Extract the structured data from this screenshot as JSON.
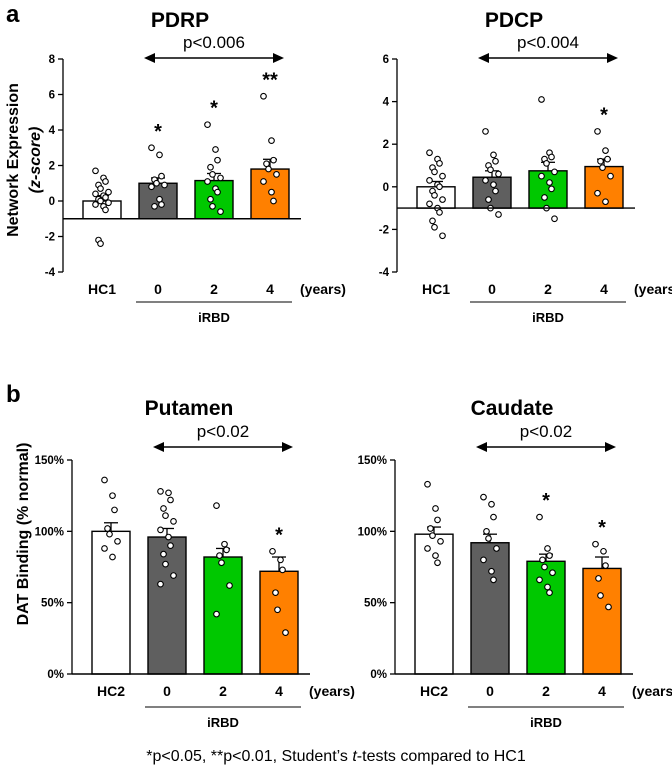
{
  "panel_labels": {
    "a": "a",
    "b": "b"
  },
  "colors": {
    "hc": "#ffffff",
    "year0": "#5f5f5f",
    "year2": "#00c800",
    "year4": "#ff8000",
    "axis": "#000000"
  },
  "shared": {
    "row_a_ylabel_main": "Network Expression",
    "row_a_ylabel_sub": "(z-score)",
    "row_b_ylabel": "DAT Binding (% normal)",
    "group_label": "iRBD",
    "years_label": "(years)"
  },
  "footnote": {
    "prefix": "*p<0.05, **p<0.01, Student’s ",
    "italic": "t",
    "suffix": "-tests compared to HC1"
  },
  "chart_data": [
    {
      "id": "pdrp",
      "type": "bar",
      "title": "PDRP",
      "categories": [
        "HC1",
        "0",
        "2",
        "4"
      ],
      "values": [
        0.0,
        1.0,
        1.15,
        1.8
      ],
      "errors": [
        0.3,
        0.3,
        0.4,
        0.55
      ],
      "baseline": -1,
      "ylim": [
        -4,
        8
      ],
      "yticks": [
        "-4",
        "-2",
        "0",
        "2",
        "4",
        "6",
        "8"
      ],
      "ytick_values": [
        -4,
        -2,
        0,
        2,
        4,
        6,
        8
      ],
      "comparison_text": "p<0.006",
      "significance": [
        "",
        "*",
        "*",
        "**"
      ],
      "points": [
        [
          1.7,
          1.3,
          1.1,
          0.9,
          0.7,
          0.5,
          0.4,
          0.3,
          0.2,
          0.1,
          0.0,
          -0.1,
          -0.2,
          -0.3,
          -0.5,
          -2.2,
          -2.4
        ],
        [
          3.0,
          2.6,
          1.4,
          1.2,
          1.0,
          0.9,
          0.8,
          0.1,
          -0.2,
          -0.3
        ],
        [
          4.3,
          2.9,
          2.3,
          1.9,
          1.5,
          1.3,
          1.1,
          0.7,
          0.5,
          0.1,
          -0.3,
          -0.6
        ],
        [
          5.9,
          3.4,
          2.3,
          2.1,
          1.8,
          1.5,
          1.1,
          0.5,
          0.0
        ]
      ]
    },
    {
      "id": "pdcp",
      "type": "bar",
      "title": "PDCP",
      "categories": [
        "HC1",
        "0",
        "2",
        "4"
      ],
      "values": [
        0.0,
        0.45,
        0.75,
        0.95
      ],
      "errors": [
        0.25,
        0.3,
        0.4,
        0.35
      ],
      "baseline": -1,
      "ylim": [
        -4,
        6
      ],
      "yticks": [
        "-4",
        "-2",
        "0",
        "2",
        "4",
        "6"
      ],
      "ytick_values": [
        -4,
        -2,
        0,
        2,
        4,
        6
      ],
      "comparison_text": "p<0.004",
      "significance": [
        "",
        "",
        "",
        "*"
      ],
      "points": [
        [
          1.6,
          1.3,
          1.1,
          0.9,
          0.7,
          0.5,
          0.3,
          0.1,
          0.0,
          -0.2,
          -0.4,
          -0.6,
          -0.8,
          -1.0,
          -1.2,
          -1.6,
          -1.9,
          -2.3
        ],
        [
          2.6,
          1.5,
          1.2,
          1.0,
          0.8,
          0.6,
          0.3,
          0.1,
          -0.2,
          -0.6,
          -1.0,
          -1.3
        ],
        [
          4.1,
          1.6,
          1.4,
          1.3,
          1.1,
          0.7,
          0.5,
          0.2,
          -0.1,
          -0.5,
          -1.0,
          -1.5
        ],
        [
          2.6,
          1.7,
          1.3,
          1.2,
          0.9,
          0.5,
          -0.3,
          -0.7
        ]
      ]
    },
    {
      "id": "putamen",
      "type": "bar",
      "title": "Putamen",
      "categories": [
        "HC2",
        "0",
        "2",
        "4"
      ],
      "values": [
        100,
        96,
        82,
        72
      ],
      "errors": [
        6,
        6,
        6,
        10
      ],
      "baseline": 0,
      "ylim": [
        0,
        150
      ],
      "yticks": [
        "0%",
        "50%",
        "100%",
        "150%"
      ],
      "ytick_values": [
        0,
        50,
        100,
        150
      ],
      "comparison_text": "p<0.02",
      "significance": [
        "",
        "",
        "",
        "*"
      ],
      "points": [
        [
          136,
          125,
          115,
          102,
          98,
          93,
          88,
          82
        ],
        [
          128,
          127,
          122,
          116,
          111,
          107,
          101,
          96,
          90,
          84,
          77,
          69,
          63
        ],
        [
          118,
          91,
          87,
          83,
          78,
          62,
          42
        ],
        [
          86,
          80,
          73,
          57,
          45,
          29
        ]
      ]
    },
    {
      "id": "caudate",
      "type": "bar",
      "title": "Caudate",
      "categories": [
        "HC2",
        "0",
        "2",
        "4"
      ],
      "values": [
        98,
        92,
        79,
        74
      ],
      "errors": [
        5,
        6,
        5,
        8
      ],
      "baseline": 0,
      "ylim": [
        0,
        150
      ],
      "yticks": [
        "0%",
        "50%",
        "100%",
        "150%"
      ],
      "ytick_values": [
        0,
        50,
        100,
        150
      ],
      "comparison_text": "p<0.02",
      "significance": [
        "",
        "",
        "*",
        "*"
      ],
      "points": [
        [
          133,
          116,
          108,
          102,
          97,
          93,
          88,
          83,
          78
        ],
        [
          124,
          119,
          110,
          100,
          95,
          88,
          80,
          72,
          66
        ],
        [
          110,
          88,
          83,
          80,
          75,
          71,
          66,
          61,
          57
        ],
        [
          91,
          86,
          76,
          67,
          55,
          47
        ]
      ]
    }
  ]
}
